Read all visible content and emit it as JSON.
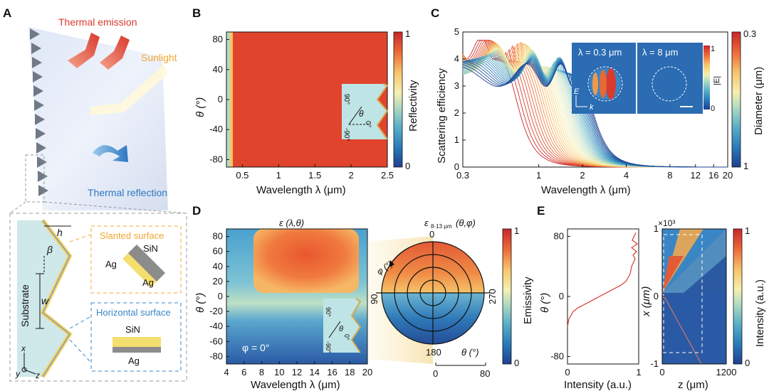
{
  "figure": {
    "panels": {
      "A": "A",
      "B": "B",
      "C": "C",
      "D": "D",
      "E": "E"
    },
    "panel_a": {
      "thermal_emission": "Thermal emission",
      "sunlight": "Sunlight",
      "thermal_reflection": "Thermal reflection",
      "h": "h",
      "beta": "β",
      "w": "w",
      "substrate": "Substrate",
      "slanted_surface": "Slanted surface",
      "horizontal_surface": "Horizontal surface",
      "ag": "Ag",
      "sin": "SiN",
      "x": "x",
      "y": "y",
      "z": "z"
    },
    "panel_b": {
      "ylabel": "θ (°)",
      "xlabel": "Wavelength λ (μm)",
      "colorbar_label": "Reflectivity",
      "inset_angle": "θ",
      "inset_pos90": "90°",
      "inset_zero": "0°",
      "inset_neg90": "-90°"
    },
    "panel_c": {
      "ylabel": "Scattering efficiency",
      "xlabel": "Wavelength λ (μm)",
      "colorbar_label": "Diameter (μm)",
      "inset_left": "λ = 0.3 μm",
      "inset_right": "λ = 8 μm",
      "inset_cbar_label": "|E|",
      "inset_E": "E",
      "inset_k": "k"
    },
    "panel_d": {
      "title_left": "ε (λ,θ)",
      "title_right": "ε",
      "title_right_sub": "8-13 μm",
      "title_right_rest": " (θ,φ)",
      "phi_label": "φ = 0°",
      "ylabel": "θ (°)",
      "xlabel": "Wavelength λ (μm)",
      "colorbar_label": "Emissivity",
      "polar_0": "0",
      "polar_90": "90",
      "polar_180": "180",
      "polar_270": "270",
      "polar_phi": "φ (°)",
      "theta_axis": "θ (°)",
      "theta_ticks": [
        "0",
        "80"
      ]
    },
    "panel_e": {
      "ylabel_left": "θ (°)",
      "xlabel_left": "Intensity (a.u.)",
      "ylabel_right": "x (μm)",
      "xlabel_right": "z (μm)",
      "colorbar_label": "Intensity (a.u.)",
      "scale_label": "×10³"
    }
  },
  "chart_data": [
    {
      "id": "B",
      "type": "heatmap",
      "title": "",
      "xlabel": "Wavelength λ (μm)",
      "ylabel": "θ (°)",
      "xlim": [
        0.28,
        2.5
      ],
      "ylim": [
        -90,
        90
      ],
      "xticks": [
        0.5,
        1,
        1.5,
        2,
        2.5
      ],
      "xtick_labels": [
        "0.5",
        "1",
        "1.5",
        "2",
        "2.5"
      ],
      "yticks": [
        80,
        40,
        0,
        -40,
        -80
      ],
      "ytick_labels": [
        "80",
        "40",
        "0",
        "-40",
        "-80"
      ],
      "colorbar": {
        "label": "Reflectivity",
        "range": [
          0,
          1
        ],
        "tick_labels": [
          "1",
          "0"
        ]
      },
      "description_values": {
        "edge_below_0.33um": 0.35,
        "broadband": 0.92
      }
    },
    {
      "id": "C",
      "type": "line",
      "xlabel": "Wavelength λ (μm)",
      "ylabel": "Scattering efficiency",
      "xscale": "log",
      "xlim": [
        0.3,
        20
      ],
      "ylim": [
        0,
        5
      ],
      "xticks": [
        0.3,
        1,
        2,
        4,
        8,
        12,
        16,
        20
      ],
      "xtick_labels": [
        "0.3",
        "1",
        "2",
        "4",
        "8",
        "12",
        "16",
        "20"
      ],
      "yticks": [
        0,
        1,
        2,
        3,
        4,
        5
      ],
      "ytick_labels": [
        "0",
        "1",
        "2",
        "3",
        "4",
        "5"
      ],
      "series_count": 40,
      "diameter_range_um": [
        0.3,
        1
      ],
      "colorbar": {
        "label": "Diameter (μm)",
        "range": [
          0.3,
          1
        ],
        "tick_labels": [
          "0.3",
          "1"
        ]
      },
      "inset_colorbar": {
        "label": "|E|",
        "tick_labels": [
          "1",
          "0"
        ]
      }
    },
    {
      "id": "D",
      "type": "heatmap",
      "xlabel": "Wavelength λ (μm)",
      "ylabel": "θ (°)",
      "xlim": [
        4,
        20
      ],
      "ylim": [
        -90,
        90
      ],
      "xticks": [
        4,
        6,
        8,
        10,
        12,
        14,
        16,
        18,
        20
      ],
      "xtick_labels": [
        "4",
        "6",
        "8",
        "10",
        "12",
        "14",
        "16",
        "18",
        "20"
      ],
      "yticks": [
        80,
        60,
        40,
        20,
        0,
        -20,
        -40,
        -60,
        -80
      ],
      "ytick_labels": [
        "80",
        "60",
        "40",
        "20",
        "0",
        "-20",
        "-40",
        "-60",
        "-80"
      ],
      "colorbar": {
        "label": "Emissivity",
        "range": [
          0,
          1
        ],
        "tick_labels": [
          "1",
          "0"
        ]
      },
      "polar": {
        "theta_range": [
          0,
          80
        ],
        "phi_ticks": [
          "0",
          "90",
          "180",
          "270"
        ]
      }
    },
    {
      "id": "E-left",
      "type": "line",
      "xlabel": "Intensity (a.u.)",
      "ylabel": "θ (°)",
      "xlim": [
        0,
        1
      ],
      "ylim": [
        -90,
        90
      ],
      "xtick_labels": [
        "0",
        "1"
      ],
      "ytick_labels": [
        "80",
        "0",
        "-80"
      ],
      "x": [
        0.0,
        0.02,
        0.08,
        0.15,
        0.25,
        0.35,
        0.45,
        0.55,
        0.65,
        0.75,
        0.82,
        0.88,
        0.9,
        0.95,
        0.92,
        0.97,
        0.9,
        0.98,
        0.91,
        0.96
      ],
      "y": [
        -40,
        -30,
        -20,
        -15,
        -10,
        -5,
        0,
        5,
        10,
        15,
        20,
        30,
        40,
        50,
        55,
        60,
        65,
        70,
        75,
        85
      ]
    },
    {
      "id": "E-right",
      "type": "heatmap",
      "xlabel": "z (μm)",
      "ylabel": "x (μm)",
      "xlim": [
        0,
        1200
      ],
      "ylim": [
        -1000,
        1000
      ],
      "xtick_labels": [
        "0",
        "1200"
      ],
      "ytick_labels": [
        "1",
        "0",
        "-1"
      ],
      "colorbar": {
        "label": "Intensity (a.u.)",
        "range": [
          0,
          1
        ],
        "tick_labels": [
          "1",
          "0"
        ]
      }
    }
  ]
}
